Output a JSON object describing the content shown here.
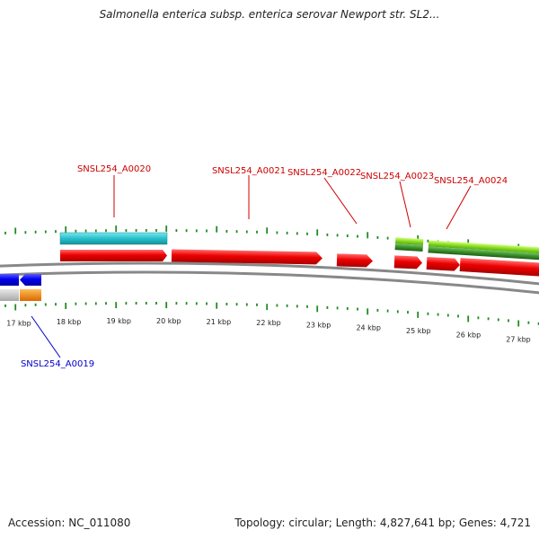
{
  "title": "Salmonella enterica subsp. enterica serovar Newport str. SL2...",
  "footer": {
    "accession": "Accession: NC_011080",
    "summary": "Topology: circular; Length: 4,827,641 bp; Genes: 4,721"
  },
  "colors": {
    "forward_gene": "#e00000",
    "reverse_gene": "#0000dd",
    "cyan_feature": "#27c0cc",
    "light_green_feature": "#88dd22",
    "dark_green_feature": "#3a8f2a",
    "rna_gray": "#bbbbbb",
    "rna_orange": "#f08000",
    "backbone": "#888888",
    "ticks": "#228b22",
    "label_forward": "#cc0000",
    "label_reverse": "#0000cc"
  },
  "scale": {
    "unit": "kbp",
    "ticks": [
      {
        "kbp": 17,
        "label": "17 kbp"
      },
      {
        "kbp": 18,
        "label": "18 kbp"
      },
      {
        "kbp": 19,
        "label": "19 kbp"
      },
      {
        "kbp": 20,
        "label": "20 kbp"
      },
      {
        "kbp": 21,
        "label": "21 kbp"
      },
      {
        "kbp": 22,
        "label": "22 kbp"
      },
      {
        "kbp": 23,
        "label": "23 kbp"
      },
      {
        "kbp": 24,
        "label": "24 kbp"
      },
      {
        "kbp": 25,
        "label": "25 kbp"
      },
      {
        "kbp": 26,
        "label": "26 kbp"
      },
      {
        "kbp": 27,
        "label": "27 kbp"
      }
    ]
  },
  "gene_labels": [
    {
      "text": "SNSL254_A0020",
      "strand": "forward"
    },
    {
      "text": "SNSL254_A0021",
      "strand": "forward"
    },
    {
      "text": "SNSL254_A0022",
      "strand": "forward"
    },
    {
      "text": "SNSL254_A0023",
      "strand": "forward"
    },
    {
      "text": "SNSL254_A0024",
      "strand": "forward"
    },
    {
      "text": "SNSL254_A0019",
      "strand": "reverse"
    }
  ]
}
